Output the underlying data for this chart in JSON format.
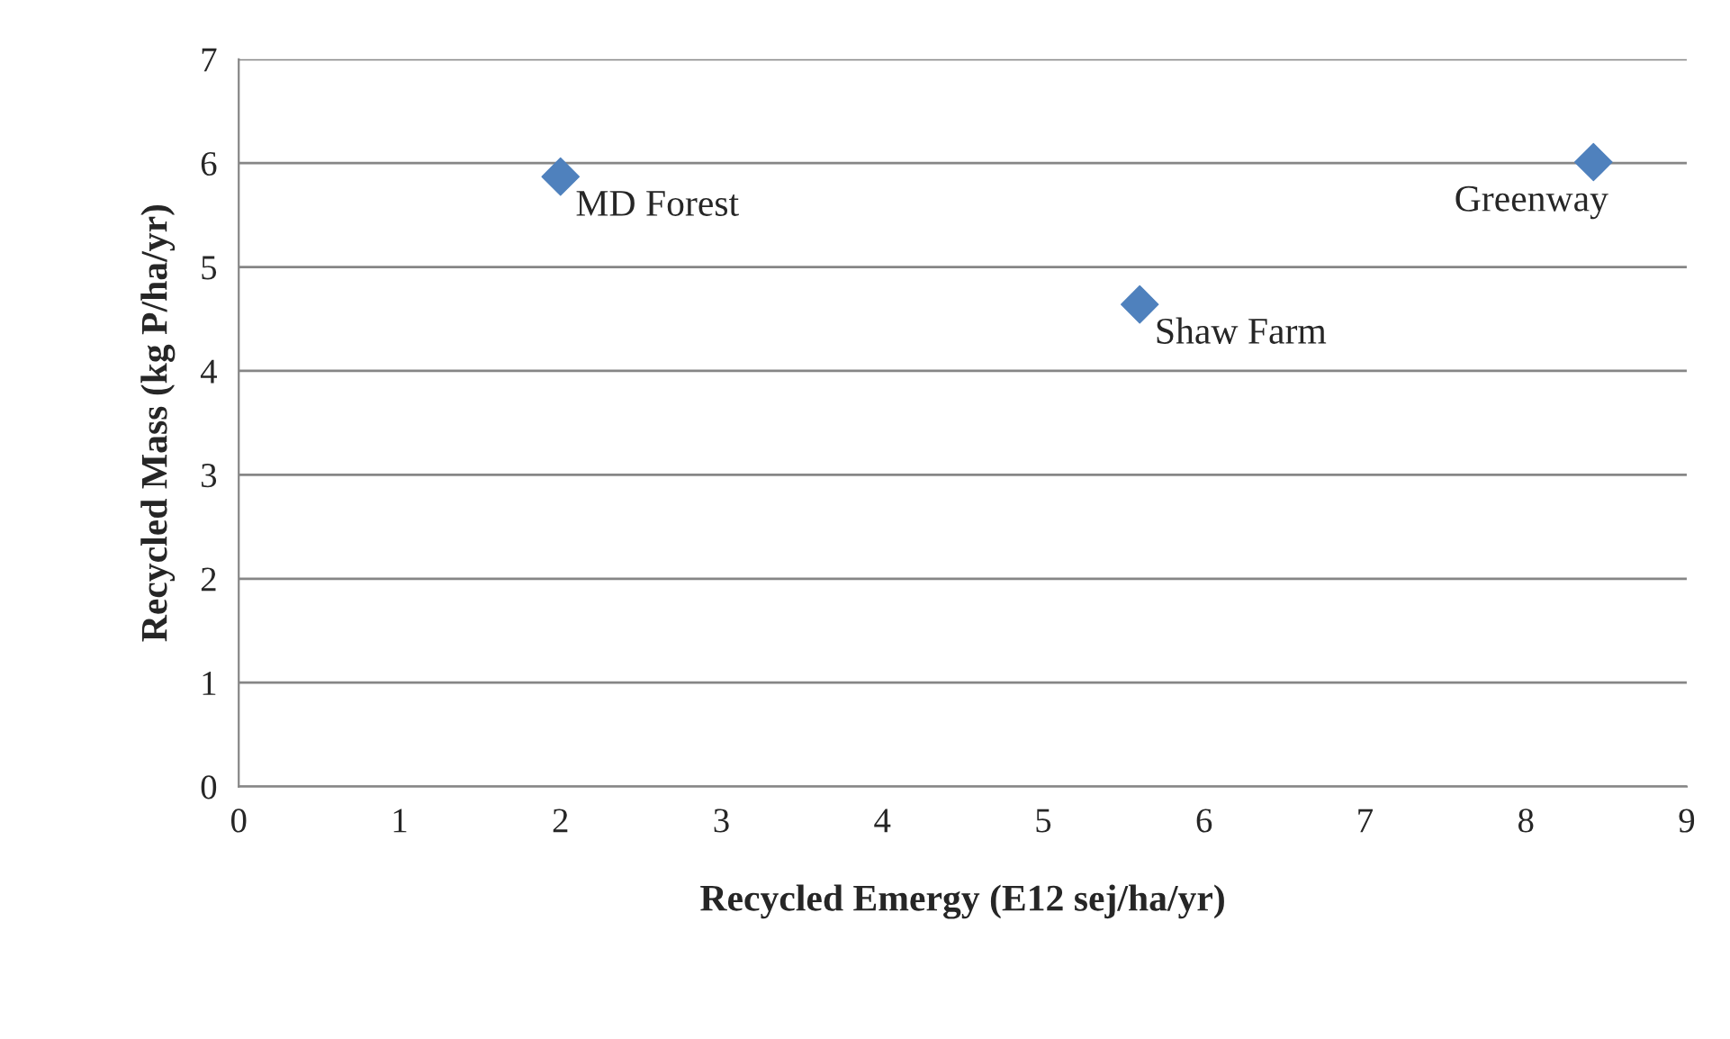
{
  "chart_data": {
    "type": "scatter",
    "xlabel": "Recycled Emergy (E12 sej/ha/yr)",
    "ylabel": "Recycled Mass (kg P/ha/yr)",
    "x": [
      2.0,
      5.6,
      8.42
    ],
    "series": [
      {
        "color": "#4f81bd",
        "values": [
          5.87,
          4.64,
          6.01
        ]
      }
    ],
    "marker": "diamond",
    "grid": "y",
    "legend": false,
    "xlim": [
      0,
      9
    ],
    "xticks": [
      0,
      1,
      2,
      3,
      4,
      5,
      6,
      7,
      8,
      9
    ],
    "ylim": [
      0,
      7
    ],
    "yticks": [
      0,
      1,
      2,
      3,
      4,
      5,
      6,
      7
    ],
    "annotations": [
      {
        "text": "MD Forest",
        "x": 2.0,
        "y": 5.87
      },
      {
        "text": "Shaw Farm",
        "x": 5.6,
        "y": 4.64
      },
      {
        "text": "Greenway",
        "x": 8.42,
        "y": 6.01
      }
    ]
  }
}
